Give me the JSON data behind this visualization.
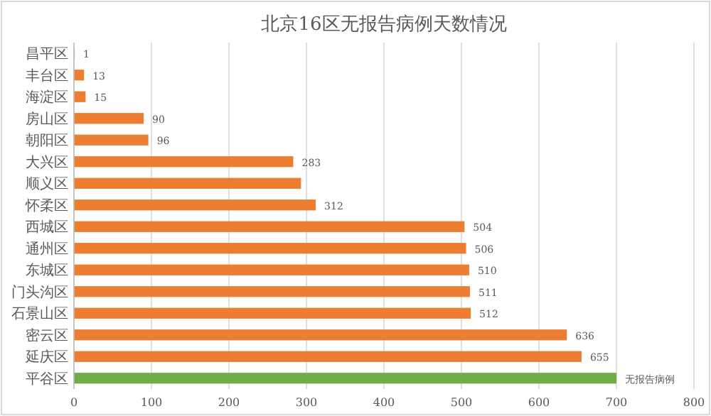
{
  "chart_data": {
    "type": "bar",
    "orientation": "horizontal",
    "title": "北京16区无报告病例天数情况",
    "categories": [
      "昌平区",
      "丰台区",
      "海淀区",
      "房山区",
      "朝阳区",
      "大兴区",
      "顺义区",
      "怀柔区",
      "西城区",
      "通州区",
      "东城区",
      "门头沟区",
      "石景山区",
      "密云区",
      "延庆区",
      "平谷区"
    ],
    "values": [
      1,
      13,
      15,
      90,
      96,
      283,
      293,
      312,
      504,
      506,
      510,
      511,
      512,
      636,
      655,
      700
    ],
    "colors": [
      "#ed7d31",
      "#ed7d31",
      "#ed7d31",
      "#ed7d31",
      "#ed7d31",
      "#ed7d31",
      "#ed7d31",
      "#ed7d31",
      "#ed7d31",
      "#ed7d31",
      "#ed7d31",
      "#ed7d31",
      "#ed7d31",
      "#ed7d31",
      "#ed7d31",
      "#70ad47"
    ],
    "value_labels": [
      "1",
      "13",
      "15",
      "90",
      "96",
      "283",
      null,
      "312",
      "504",
      "506",
      "510",
      "511",
      "512",
      "636",
      "655",
      "无报告病例"
    ],
    "xlim": [
      0,
      800
    ],
    "xticks": [
      0,
      100,
      200,
      300,
      400,
      500,
      600,
      700,
      800
    ],
    "grid": "x"
  }
}
